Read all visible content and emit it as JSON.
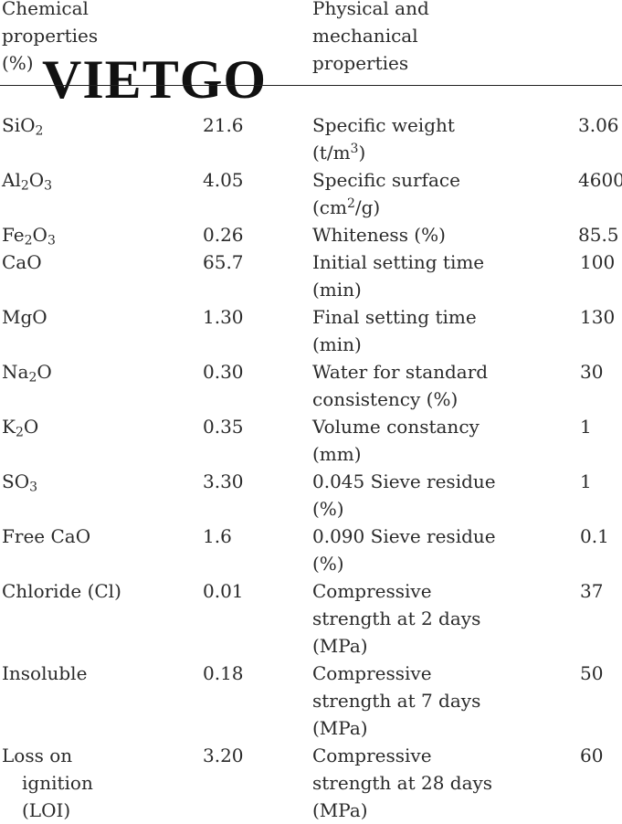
{
  "header": {
    "chem_lines": [
      "Chemical",
      "properties",
      "(%)"
    ],
    "phys_lines": [
      "Physical and",
      "mechanical",
      "properties"
    ]
  },
  "watermark": {
    "text": "VIETGO"
  },
  "rows": [
    {
      "chem": "SiO<sub>2</sub>",
      "chem_val": "21.6",
      "phys_lines": [
        "Specific weight",
        "(t/m<sup>3</sup>)"
      ],
      "phys_val": "3.06"
    },
    {
      "chem": "Al<sub>2</sub>O<sub>3</sub>",
      "chem_val": "4.05",
      "phys_lines": [
        "Specific surface",
        "(cm<sup>2</sup>/g)"
      ],
      "phys_val": "4600"
    },
    {
      "chem": "Fe<sub>2</sub>O<sub>3</sub>",
      "chem_val": "0.26",
      "phys_lines": [
        "Whiteness (%)"
      ],
      "phys_val": "85.5"
    },
    {
      "chem": "CaO",
      "chem_val": "65.7",
      "phys_lines": [
        "Initial setting time",
        "(min)"
      ],
      "phys_val": "100"
    },
    {
      "chem": "MgO",
      "chem_val": "1.30",
      "phys_lines": [
        "Final setting time",
        "(min)"
      ],
      "phys_val": "130"
    },
    {
      "chem": "Na<sub>2</sub>O",
      "chem_val": "0.30",
      "phys_lines": [
        "Water for standard",
        "consistency (%)"
      ],
      "phys_val": "30"
    },
    {
      "chem": "K<sub>2</sub>O",
      "chem_val": "0.35",
      "phys_lines": [
        "Volume constancy",
        "(mm)"
      ],
      "phys_val": "1"
    },
    {
      "chem": "SO<sub>3</sub>",
      "chem_val": "3.30",
      "phys_lines": [
        "0.045 Sieve residue",
        "(%)"
      ],
      "phys_val": "1"
    },
    {
      "chem": "Free CaO",
      "chem_val": "1.6",
      "phys_lines": [
        "0.090 Sieve residue",
        "(%)"
      ],
      "phys_val": "0.1"
    },
    {
      "chem": "Chloride (Cl)",
      "chem_val": "0.01",
      "phys_lines": [
        "Compressive",
        "strength at 2 days",
        "(MPa)"
      ],
      "phys_val": "37"
    },
    {
      "chem": "Insoluble",
      "chem_val": "0.18",
      "phys_lines": [
        "Compressive",
        "strength at 7 days",
        "(MPa)"
      ],
      "phys_val": "50"
    },
    {
      "chem": "Loss on ignition (LOI)",
      "chem_lines": [
        "Loss on",
        "ignition",
        "(LOI)"
      ],
      "chem_val": "3.20",
      "phys_lines": [
        "Compressive",
        "strength at 28 days",
        "(MPa)"
      ],
      "phys_val": "60"
    }
  ]
}
